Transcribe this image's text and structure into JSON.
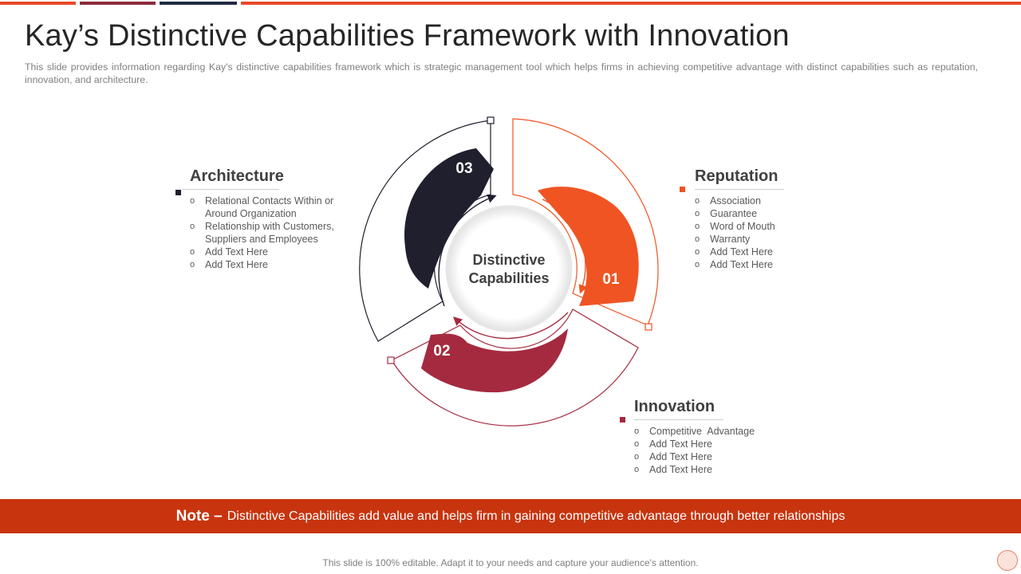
{
  "slide": {
    "title": "Kay’s Distinctive Capabilities Framework with Innovation",
    "subtitle": "This slide provides information regarding Kay's distinctive capabilities framework which is strategic management tool which helps firms in achieving competitive advantage with distinct capabilities such as reputation, innovation, and architecture."
  },
  "colors": {
    "orange": "#f05423",
    "crimson": "#a52a3f",
    "navy": "#1f1f2e",
    "note_red": "#c8340e",
    "accent_bar_1": "#e8492a",
    "accent_bar_2": "#8b2b3c",
    "accent_bar_3": "#1f2a44"
  },
  "diagram": {
    "center_line1": "Distinctive",
    "center_line2": "Capabilities",
    "segments": [
      {
        "number": "01",
        "color": "#f05423"
      },
      {
        "number": "02",
        "color": "#a52a3f"
      },
      {
        "number": "03",
        "color": "#1f1f2e"
      }
    ]
  },
  "reputation": {
    "heading": "Reputation",
    "items": [
      "Association",
      "Guarantee",
      "Word of Mouth",
      "Warranty",
      "Add Text Here",
      "Add Text Here"
    ]
  },
  "architecture": {
    "heading": "Architecture",
    "items": [
      "Relational Contacts Within or Around Organization",
      "Relationship with Customers, Suppliers and Employees",
      "Add Text Here",
      "Add Text Here"
    ]
  },
  "innovation": {
    "heading": "Innovation",
    "items": [
      "Competitive  Advantage",
      "Add Text Here",
      "Add Text Here",
      "Add Text Here"
    ]
  },
  "note": {
    "label": "Note –",
    "text": "Distinctive Capabilities add value and helps firm in gaining competitive advantage through better relationships"
  },
  "footer": {
    "text": "This slide is 100% editable. Adapt it to your needs and capture your audience's attention."
  }
}
